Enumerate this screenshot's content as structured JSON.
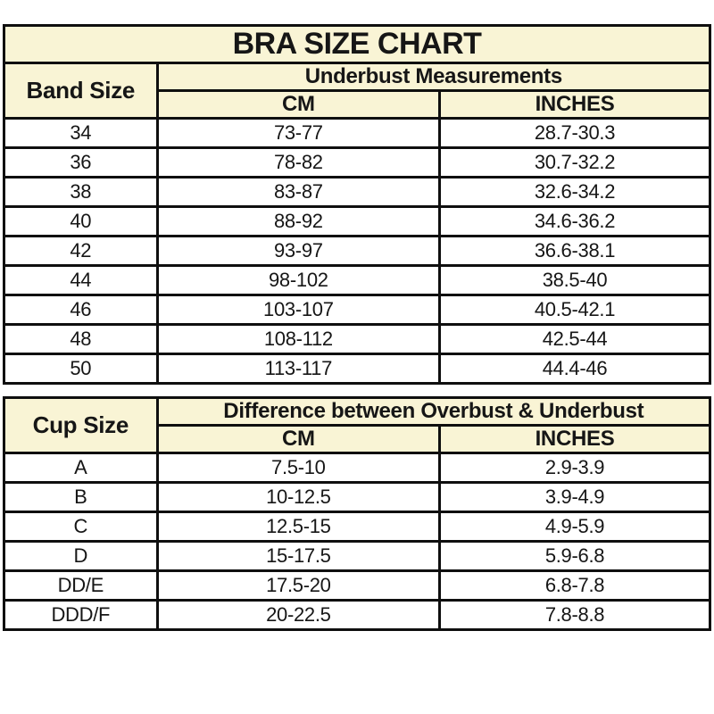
{
  "colors": {
    "header_bg": "#f9f4d5",
    "border": "#0f0f0f",
    "cell_bg": "#ffffff",
    "text": "#161616"
  },
  "chart_data": [
    {
      "type": "table",
      "title": "BRA SIZE CHART",
      "corner_header": "Band Size",
      "group_header": "Underbust Measurements",
      "columns": [
        "CM",
        "INCHES"
      ],
      "rows": [
        [
          "34",
          "73-77",
          "28.7-30.3"
        ],
        [
          "36",
          "78-82",
          "30.7-32.2"
        ],
        [
          "38",
          "83-87",
          "32.6-34.2"
        ],
        [
          "40",
          "88-92",
          "34.6-36.2"
        ],
        [
          "42",
          "93-97",
          "36.6-38.1"
        ],
        [
          "44",
          "98-102",
          "38.5-40"
        ],
        [
          "46",
          "103-107",
          "40.5-42.1"
        ],
        [
          "48",
          "108-112",
          "42.5-44"
        ],
        [
          "50",
          "113-117",
          "44.4-46"
        ]
      ]
    },
    {
      "type": "table",
      "corner_header": "Cup Size",
      "group_header": "Difference between Overbust & Underbust",
      "columns": [
        "CM",
        "INCHES"
      ],
      "rows": [
        [
          "A",
          "7.5-10",
          "2.9-3.9"
        ],
        [
          "B",
          "10-12.5",
          "3.9-4.9"
        ],
        [
          "C",
          "12.5-15",
          "4.9-5.9"
        ],
        [
          "D",
          "15-17.5",
          "5.9-6.8"
        ],
        [
          "DD/E",
          "17.5-20",
          "6.8-7.8"
        ],
        [
          "DDD/F",
          "20-22.5",
          "7.8-8.8"
        ]
      ]
    }
  ]
}
